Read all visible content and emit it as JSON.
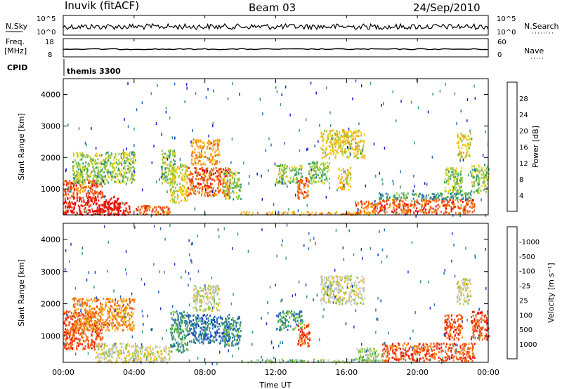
{
  "header": {
    "station": "Inuvik (fitACF)",
    "beam": "Beam 03",
    "date": "24/Sep/2010"
  },
  "top_panels": {
    "nsky_label": "N.Sky",
    "nsky_ticks": [
      "10^5",
      "10^0"
    ],
    "nsearch_label": "N.Search",
    "nsearch_ticks": [
      "10^5",
      "10^0"
    ],
    "freq_label_line1": "Freq.",
    "freq_label_line2": "[MHz]",
    "freq_ticks": [
      "18",
      "8"
    ],
    "nave_label": "Nave",
    "nave_ticks": [
      "60",
      "0"
    ],
    "cpid_label": "CPID",
    "cpid_value": "themis 3300"
  },
  "x_axis": {
    "label": "Time UT",
    "ticks": [
      "00:00",
      "04:00",
      "08:00",
      "12:00",
      "16:00",
      "20:00",
      "00:00"
    ]
  },
  "chart_data": [
    {
      "type": "heatmap",
      "panel": "power",
      "ylabel": "Slant Range [km]",
      "yticks": [
        "1000",
        "2000",
        "3000",
        "4000"
      ],
      "ylim": [
        180,
        4500
      ],
      "xlim_hours": [
        0,
        24
      ],
      "colorbar_label": "Power [dB]",
      "colorbar_ticks": [
        "4",
        "8",
        "12",
        "16",
        "20",
        "24",
        "28"
      ],
      "colorbar_range": [
        0,
        30
      ],
      "colors": [
        "#1a1adc",
        "#2a6db5",
        "#3a9a6e",
        "#8cc63f",
        "#f0d020",
        "#f5a020",
        "#f06010",
        "#e81010"
      ],
      "regions": [
        {
          "t": [
            0.0,
            3.2
          ],
          "r": [
            200,
            800
          ],
          "level": 7
        },
        {
          "t": [
            0.0,
            2.2
          ],
          "r": [
            800,
            1300
          ],
          "level": 6
        },
        {
          "t": [
            2.0,
            3.8
          ],
          "r": [
            200,
            600
          ],
          "level": 7
        },
        {
          "t": [
            0.5,
            4.0
          ],
          "r": [
            1200,
            2200
          ],
          "level": 3
        },
        {
          "t": [
            4.0,
            6.0
          ],
          "r": [
            200,
            500
          ],
          "level": 6
        },
        {
          "t": [
            5.5,
            6.3
          ],
          "r": [
            1200,
            2300
          ],
          "level": 3
        },
        {
          "t": [
            6.0,
            7.0
          ],
          "r": [
            600,
            1800
          ],
          "level": 4
        },
        {
          "t": [
            7.0,
            9.4
          ],
          "r": [
            800,
            1700
          ],
          "level": 6
        },
        {
          "t": [
            7.2,
            8.8
          ],
          "r": [
            1800,
            2600
          ],
          "level": 5
        },
        {
          "t": [
            9.0,
            10.0
          ],
          "r": [
            700,
            1600
          ],
          "level": 3
        },
        {
          "t": [
            12.0,
            13.5
          ],
          "r": [
            1200,
            1800
          ],
          "level": 3
        },
        {
          "t": [
            13.2,
            13.8
          ],
          "r": [
            700,
            1400
          ],
          "level": 6
        },
        {
          "t": [
            13.8,
            15.0
          ],
          "r": [
            1200,
            1900
          ],
          "level": 3
        },
        {
          "t": [
            14.5,
            17.0
          ],
          "r": [
            2000,
            2900
          ],
          "level": 4
        },
        {
          "t": [
            15.5,
            16.2
          ],
          "r": [
            1000,
            1700
          ],
          "level": 4
        },
        {
          "t": [
            16.5,
            18.0
          ],
          "r": [
            250,
            650
          ],
          "level": 6
        },
        {
          "t": [
            18.0,
            23.2
          ],
          "r": [
            250,
            700
          ],
          "level": 6
        },
        {
          "t": [
            17.8,
            23.0
          ],
          "r": [
            700,
            900
          ],
          "level": 2
        },
        {
          "t": [
            21.5,
            22.5
          ],
          "r": [
            900,
            1700
          ],
          "level": 3
        },
        {
          "t": [
            22.2,
            23.0
          ],
          "r": [
            2000,
            2800
          ],
          "level": 4
        },
        {
          "t": [
            23.0,
            24.0
          ],
          "r": [
            900,
            1800
          ],
          "level": 3
        },
        {
          "t": [
            10.0,
            17.5
          ],
          "r": [
            200,
            300
          ],
          "level": 5
        }
      ]
    },
    {
      "type": "heatmap",
      "panel": "velocity",
      "ylabel": "Slant Range [km]",
      "yticks": [
        "1000",
        "2000",
        "3000",
        "4000"
      ],
      "ylim": [
        180,
        4500
      ],
      "xlim_hours": [
        0,
        24
      ],
      "colorbar_label": "Velocity [m s⁻¹]",
      "colorbar_ticks": [
        "1000",
        "500",
        "100",
        "25",
        "-25",
        "-100",
        "-500",
        "-1000"
      ],
      "colors": [
        "#1a3cc8",
        "#2a6db5",
        "#3a9a6e",
        "#8cc63f",
        "#c8c8c8",
        "#f0c020",
        "#f08a20",
        "#f05010",
        "#e81010"
      ],
      "regions": [
        {
          "t": [
            0.0,
            2.2
          ],
          "r": [
            600,
            1800
          ],
          "level": 7
        },
        {
          "t": [
            1.8,
            4.2
          ],
          "r": [
            200,
            800
          ],
          "level": 4
        },
        {
          "t": [
            0.5,
            4.0
          ],
          "r": [
            1200,
            2200
          ],
          "level": 6
        },
        {
          "t": [
            4.0,
            6.0
          ],
          "r": [
            200,
            700
          ],
          "level": 4
        },
        {
          "t": [
            6.0,
            7.0
          ],
          "r": [
            500,
            1800
          ],
          "level": 2
        },
        {
          "t": [
            7.0,
            9.4
          ],
          "r": [
            800,
            1700
          ],
          "level": 1
        },
        {
          "t": [
            7.3,
            8.8
          ],
          "r": [
            1800,
            2600
          ],
          "level": 4
        },
        {
          "t": [
            9.0,
            10.0
          ],
          "r": [
            700,
            1600
          ],
          "level": 2
        },
        {
          "t": [
            12.0,
            13.5
          ],
          "r": [
            1200,
            1800
          ],
          "level": 2
        },
        {
          "t": [
            13.2,
            13.9
          ],
          "r": [
            700,
            1400
          ],
          "level": 7
        },
        {
          "t": [
            14.5,
            17.0
          ],
          "r": [
            2000,
            2900
          ],
          "level": 4
        },
        {
          "t": [
            16.5,
            18.0
          ],
          "r": [
            250,
            650
          ],
          "level": 3
        },
        {
          "t": [
            18.0,
            23.2
          ],
          "r": [
            250,
            800
          ],
          "level": 7
        },
        {
          "t": [
            21.5,
            22.5
          ],
          "r": [
            900,
            1700
          ],
          "level": 7
        },
        {
          "t": [
            22.2,
            23.0
          ],
          "r": [
            2000,
            2800
          ],
          "level": 4
        },
        {
          "t": [
            23.0,
            24.0
          ],
          "r": [
            900,
            1800
          ],
          "level": 7
        },
        {
          "t": [
            10.0,
            17.5
          ],
          "r": [
            200,
            300
          ],
          "level": 3
        }
      ]
    }
  ]
}
